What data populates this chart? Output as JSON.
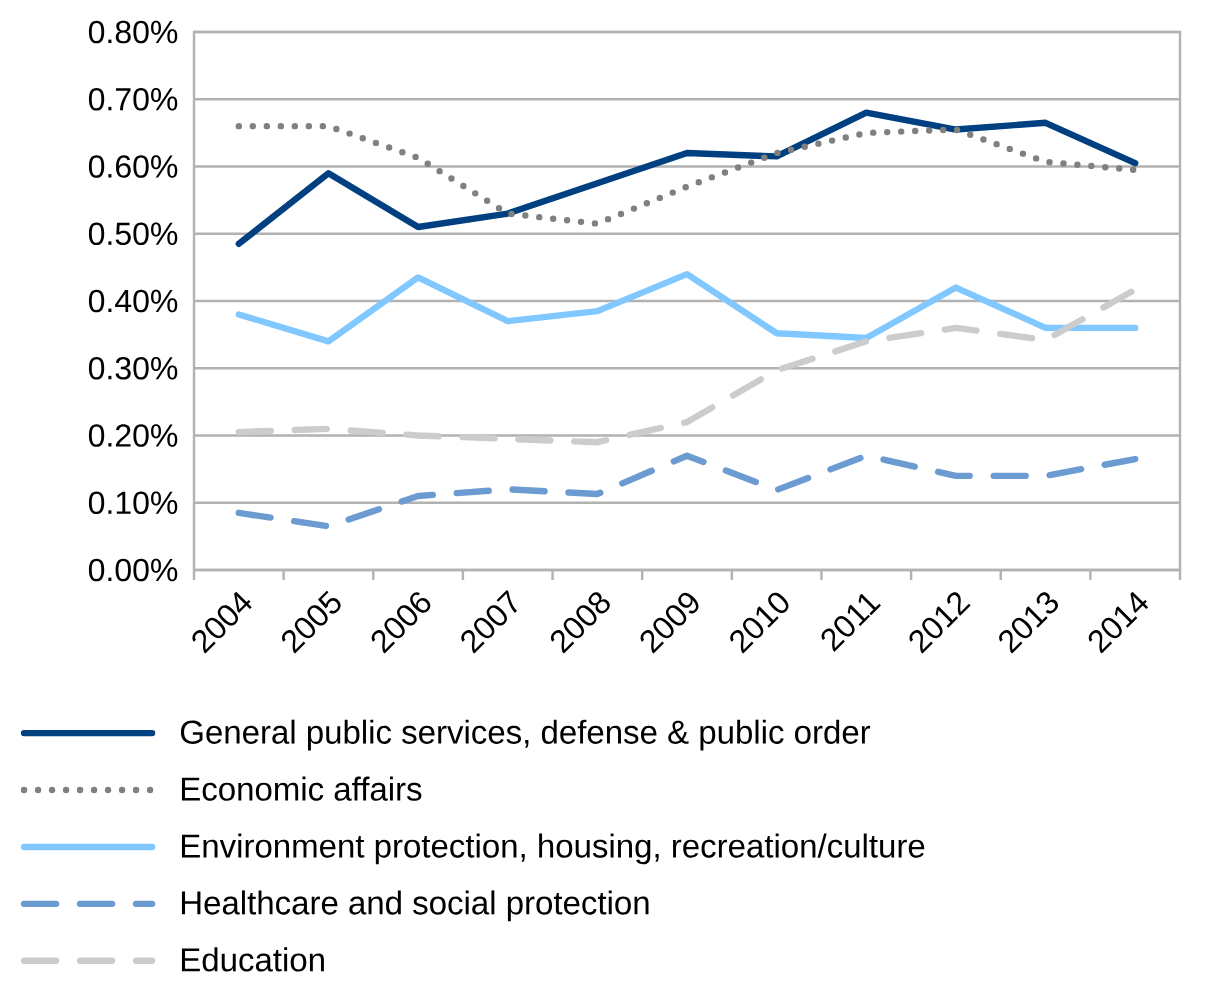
{
  "chart_data": {
    "type": "line",
    "categories": [
      "2004",
      "2005",
      "2006",
      "2007",
      "2008",
      "2009",
      "2010",
      "2011",
      "2012",
      "2013",
      "2014"
    ],
    "series": [
      {
        "name": "General public services, defense & public order",
        "color": "#004080",
        "line_style": "solid",
        "values": [
          0.485,
          0.59,
          0.51,
          0.53,
          0.575,
          0.62,
          0.615,
          0.68,
          0.655,
          0.665,
          0.605
        ]
      },
      {
        "name": "Economic affairs",
        "color": "#808080",
        "line_style": "dotted",
        "values": [
          0.66,
          0.66,
          0.613,
          0.53,
          0.515,
          0.57,
          0.62,
          0.65,
          0.655,
          0.607,
          0.595
        ]
      },
      {
        "name": "Environment protection, housing, recreation/culture",
        "color": "#80c8ff",
        "line_style": "solid",
        "values": [
          0.38,
          0.34,
          0.435,
          0.37,
          0.385,
          0.44,
          0.352,
          0.345,
          0.42,
          0.36,
          0.36
        ]
      },
      {
        "name": "Healthcare and social protection",
        "color": "#6b9bd1",
        "line_style": "dashed",
        "values": [
          0.085,
          0.065,
          0.11,
          0.12,
          0.113,
          0.17,
          0.119,
          0.17,
          0.14,
          0.14,
          0.165
        ]
      },
      {
        "name": "Education",
        "color": "#cccccc",
        "line_style": "dashed",
        "values": [
          0.205,
          0.21,
          0.2,
          0.195,
          0.19,
          0.22,
          0.297,
          0.34,
          0.36,
          0.342,
          0.417
        ]
      }
    ],
    "ylim": [
      0,
      0.8
    ],
    "yticks": [
      {
        "value": 0,
        "label": "0.00%"
      },
      {
        "value": 0.1,
        "label": "0.10%"
      },
      {
        "value": 0.2,
        "label": "0.20%"
      },
      {
        "value": 0.3,
        "label": "0.30%"
      },
      {
        "value": 0.4,
        "label": "0.40%"
      },
      {
        "value": 0.5,
        "label": "0.50%"
      },
      {
        "value": 0.6,
        "label": "0.60%"
      },
      {
        "value": 0.7,
        "label": "0.70%"
      },
      {
        "value": 0.8,
        "label": "0.80%"
      }
    ],
    "grid": "y",
    "legend": "bottom",
    "marker": "none"
  }
}
